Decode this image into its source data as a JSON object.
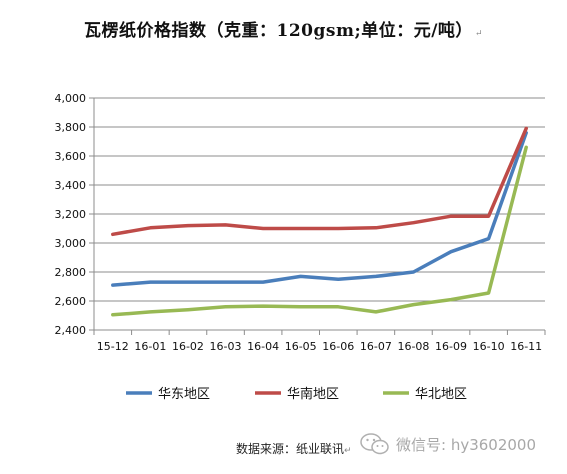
{
  "title": "瓦楞纸价格指数（克重：120gsm;单位：元/吨）",
  "title_mark": "↵",
  "source": "数据来源：纸业联讯",
  "source_mark": "↵",
  "watermark": "微信号: hy3602000",
  "watermark_icon": "wechat-icon",
  "colors": {
    "grid": "#8c8c8c",
    "axis": "#8c8c8c"
  },
  "chart_data": {
    "type": "line",
    "title": "瓦楞纸价格指数（克重：120gsm;单位：元/吨）",
    "xlabel": "",
    "ylabel": "",
    "categories": [
      "15-12",
      "16-01",
      "16-02",
      "16-03",
      "16-04",
      "16-05",
      "16-06",
      "16-07",
      "16-08",
      "16-09",
      "16-10",
      "16-11"
    ],
    "ylim": [
      2400,
      4000
    ],
    "yticks": [
      2400,
      2600,
      2800,
      3000,
      3200,
      3400,
      3600,
      3800,
      4000
    ],
    "ytick_labels": [
      "2,400",
      "2,600",
      "2,800",
      "3,000",
      "3,200",
      "3,400",
      "3,600",
      "3,800",
      "4,000"
    ],
    "grid": true,
    "legend_position": "bottom",
    "series": [
      {
        "name": "华东地区",
        "color": "#4a7ebb",
        "values": [
          2710,
          2730,
          2730,
          2730,
          2730,
          2770,
          2750,
          2770,
          2800,
          2940,
          3030,
          3760
        ]
      },
      {
        "name": "华南地区",
        "color": "#be4b48",
        "values": [
          3060,
          3105,
          3120,
          3125,
          3100,
          3100,
          3100,
          3105,
          3140,
          3185,
          3185,
          3790
        ]
      },
      {
        "name": "华北地区",
        "color": "#98b954",
        "values": [
          2505,
          2525,
          2540,
          2560,
          2565,
          2560,
          2560,
          2525,
          2575,
          2610,
          2655,
          3660
        ]
      }
    ]
  }
}
